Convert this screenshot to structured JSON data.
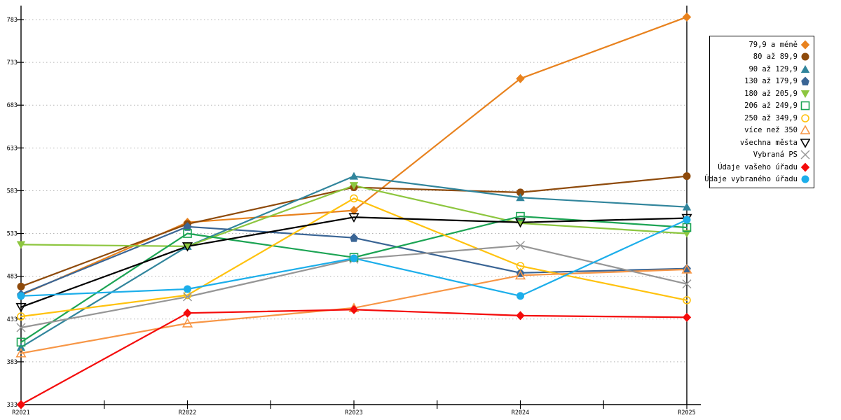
{
  "page": {
    "background": "#FFFFFF"
  },
  "chart_data": {
    "type": "line",
    "title": "",
    "xlabel": "",
    "ylabel": "",
    "x_categories": [
      "R2021",
      "R2022",
      "R2023",
      "R2024",
      "R2025"
    ],
    "ylim": [
      333,
      783
    ],
    "yticks": [
      333,
      383,
      433,
      483,
      533,
      583,
      633,
      683,
      733,
      783
    ],
    "grid": "horizontal-dotted",
    "grid_color": "#B3B3B3",
    "axis_color": "#000000",
    "legend_position": "right",
    "series": [
      {
        "name": "79,9 a méně",
        "color": "#E8821E",
        "marker": "diamond",
        "filled": true,
        "values": [
          461,
          546,
          560,
          714,
          786
        ]
      },
      {
        "name": "80 až 89,9",
        "color": "#8E4A0B",
        "marker": "circle",
        "filled": true,
        "values": [
          471,
          544,
          587,
          581,
          600
        ]
      },
      {
        "name": "90 až 129,9",
        "color": "#31859C",
        "marker": "triangle-up",
        "filled": true,
        "values": [
          400,
          518,
          600,
          575,
          564
        ]
      },
      {
        "name": "130 až 179,9",
        "color": "#3A6595",
        "marker": "pentagon",
        "filled": true,
        "values": [
          462,
          541,
          528,
          487,
          492
        ]
      },
      {
        "name": "180 až 205,9",
        "color": "#8DC63F",
        "marker": "triangle-down",
        "filled": true,
        "values": [
          520,
          518,
          589,
          545,
          533
        ]
      },
      {
        "name": "206 až 249,9",
        "color": "#1CA454",
        "marker": "square",
        "filled": false,
        "values": [
          406,
          533,
          505,
          553,
          540
        ]
      },
      {
        "name": "250 až 349,9",
        "color": "#FFC20E",
        "marker": "circle",
        "filled": false,
        "values": [
          436,
          461,
          574,
          495,
          455
        ]
      },
      {
        "name": "více než 350",
        "color": "#F79646",
        "marker": "triangle-up",
        "filled": false,
        "values": [
          393,
          428,
          446,
          484,
          491
        ]
      },
      {
        "name": "všechna města",
        "color": "#000000",
        "marker": "triangle-down",
        "filled": false,
        "values": [
          447,
          518,
          552,
          546,
          551
        ]
      },
      {
        "name": "Vybraná PS",
        "color": "#969696",
        "marker": "x",
        "filled": true,
        "values": [
          423,
          459,
          503,
          519,
          474
        ]
      },
      {
        "name": "Údaje vašeho úřadu",
        "color": "#F40B0B",
        "marker": "diamond",
        "filled": true,
        "values": [
          333,
          440,
          444,
          437,
          435
        ]
      },
      {
        "name": "Údaje vybraného úřadu",
        "color": "#1CAEEA",
        "marker": "circle",
        "filled": true,
        "values": [
          460,
          468,
          504,
          460,
          549
        ]
      }
    ]
  }
}
